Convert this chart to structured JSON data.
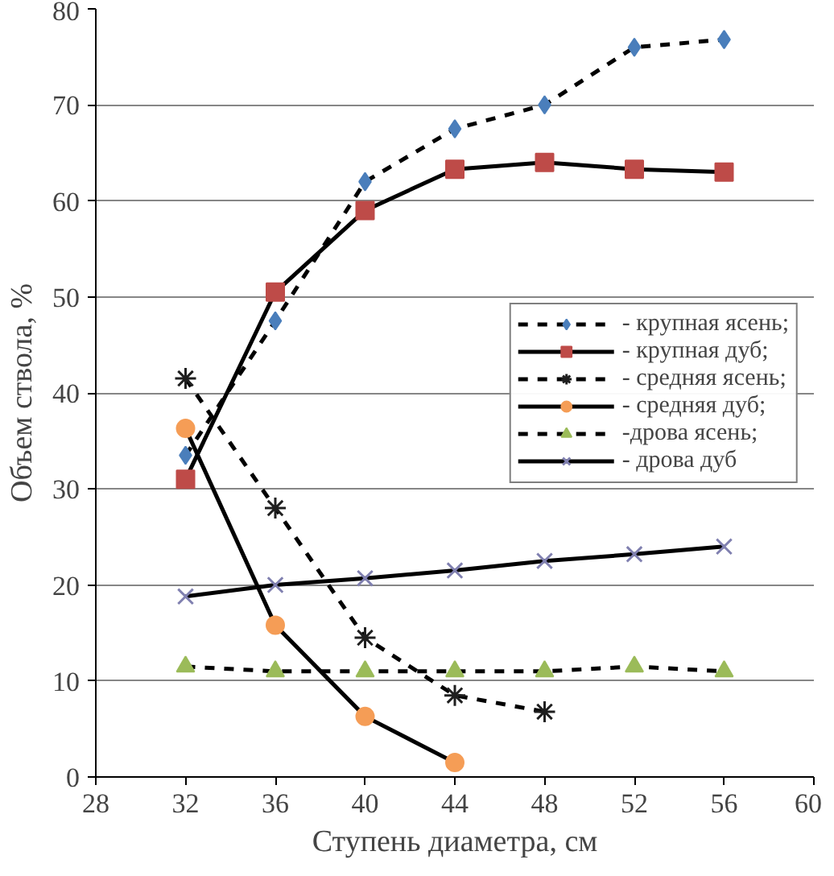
{
  "chart_data": {
    "type": "line",
    "xlabel": "Ступень диаметра, см",
    "ylabel": "Объем ствола, %",
    "x": [
      32,
      36,
      40,
      44,
      48,
      52,
      56
    ],
    "xlim": [
      28,
      60
    ],
    "xticks": [
      28,
      32,
      36,
      40,
      44,
      48,
      52,
      56,
      60
    ],
    "ylim": [
      0,
      80
    ],
    "yticks": [
      0,
      10,
      20,
      30,
      40,
      50,
      60,
      70,
      80
    ],
    "grid": "y",
    "legend": "right",
    "series": [
      {
        "name": "- крупная ясень;",
        "color": "#4a7ebb",
        "marker": "diamond",
        "line_style": "dashed",
        "values": [
          33.5,
          47.5,
          62,
          67.5,
          70,
          76,
          76.8
        ]
      },
      {
        "name": "- крупная дуб;",
        "color": "#be4b48",
        "marker": "square",
        "line_style": "solid",
        "values": [
          31,
          50.5,
          59,
          63.3,
          64,
          63.3,
          63
        ]
      },
      {
        "name": "- средняя ясень;",
        "color": "#1f1f1f",
        "marker": "cross",
        "line_style": "dashed",
        "values": [
          41.5,
          28,
          14.5,
          8.5,
          6.8,
          null,
          null
        ]
      },
      {
        "name": "- средняя дуб;",
        "color": "#f59d56",
        "marker": "circle",
        "line_style": "solid",
        "values": [
          36.3,
          15.8,
          6.3,
          1.5,
          null,
          null,
          null
        ]
      },
      {
        "name": "-дрова ясень;",
        "color": "#9bbb59",
        "marker": "triangle",
        "line_style": "dashed",
        "values": [
          11.5,
          11,
          11,
          11,
          11,
          11.5,
          11
        ]
      },
      {
        "name": "- дрова дуб",
        "color": "#8080b0",
        "marker": "cross",
        "line_style": "solid",
        "values": [
          18.8,
          20,
          20.7,
          21.5,
          22.5,
          23.2,
          24
        ]
      }
    ]
  }
}
